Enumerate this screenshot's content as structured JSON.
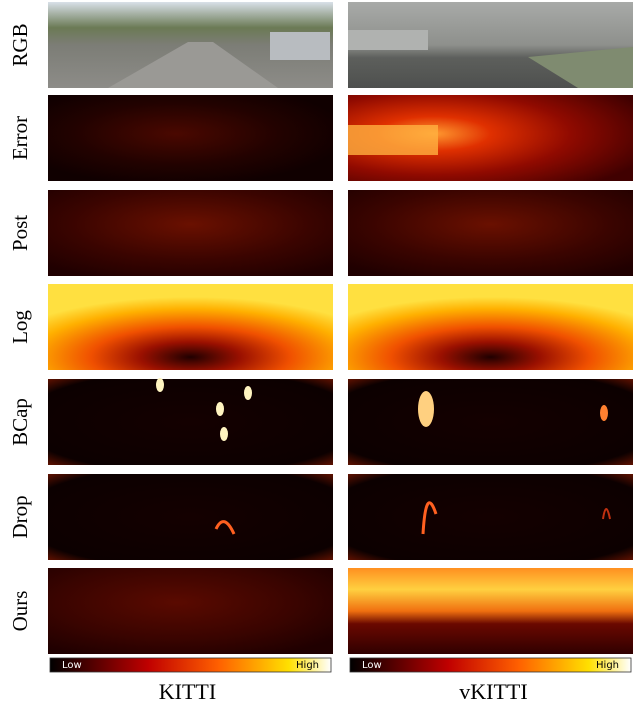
{
  "rows": [
    "RGB",
    "Error",
    "Post",
    "Log",
    "BCap",
    "Drop",
    "Ours"
  ],
  "columns": [
    "KITTI",
    "vKITTI"
  ],
  "colorbar": {
    "low": "Low",
    "high": "High"
  }
}
